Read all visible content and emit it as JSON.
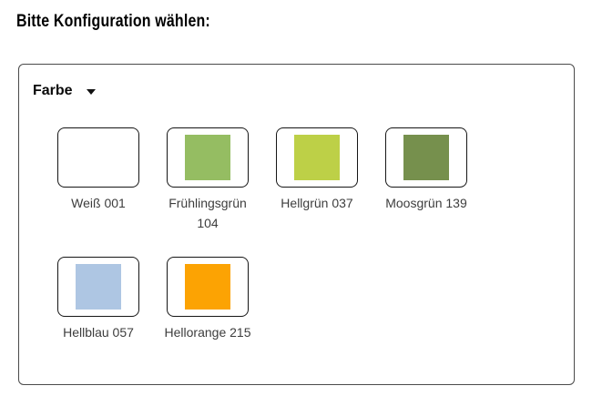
{
  "page": {
    "heading": "Bitte Konfiguration wählen:"
  },
  "configurator": {
    "dropdown": {
      "label": "Farbe",
      "caret_icon": "chevron-down"
    },
    "options": [
      {
        "label": "Weiß 001",
        "color": "#ffffff"
      },
      {
        "label": "Frühlingsgrün 104",
        "color": "#95bd62"
      },
      {
        "label": "Hellgrün 037",
        "color": "#bdd047"
      },
      {
        "label": "Moosgrün 139",
        "color": "#76904d"
      },
      {
        "label": "Hellblau 057",
        "color": "#aec6e3"
      },
      {
        "label": "Hellorange 215",
        "color": "#fca303"
      }
    ],
    "colors": {
      "panel_border": "#4a4a4a",
      "tile_border": "#161616",
      "label_text": "#3d3d3d",
      "heading_text": "#000000"
    }
  }
}
